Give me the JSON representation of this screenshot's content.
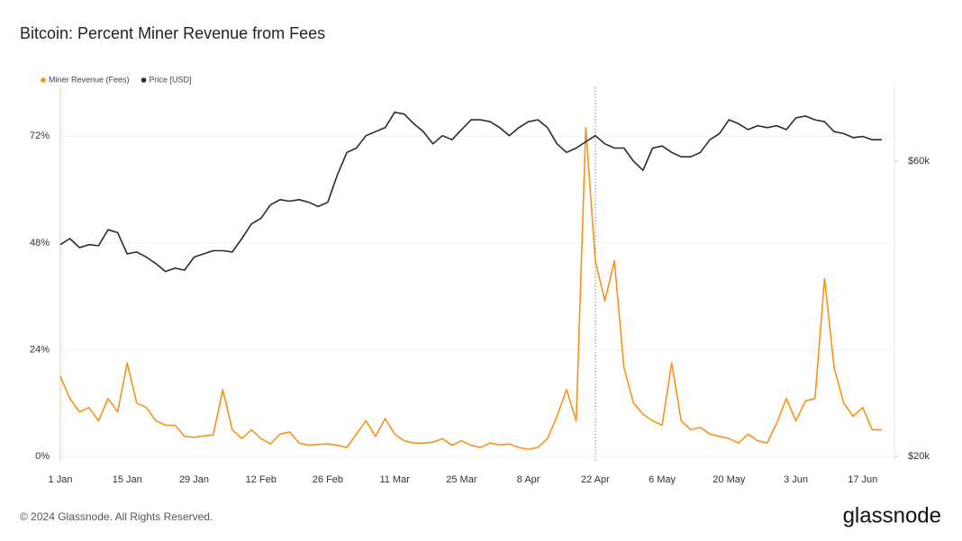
{
  "chart_data": {
    "type": "line",
    "title": "Bitcoin: Percent Miner Revenue from Fees",
    "x": [
      "1 Jan",
      null,
      null,
      null,
      null,
      null,
      null,
      "15 Jan",
      null,
      null,
      null,
      null,
      null,
      null,
      "29 Jan",
      null,
      null,
      null,
      null,
      null,
      null,
      "12 Feb",
      null,
      null,
      null,
      null,
      null,
      null,
      "26 Feb",
      null,
      null,
      null,
      null,
      null,
      null,
      "11 Mar",
      null,
      null,
      null,
      null,
      null,
      null,
      "25 Mar",
      null,
      null,
      null,
      null,
      null,
      null,
      "8 Apr",
      null,
      null,
      null,
      null,
      null,
      null,
      "22 Apr",
      null,
      null,
      null,
      null,
      null,
      null,
      "6 May",
      null,
      null,
      null,
      null,
      null,
      null,
      "20 May",
      null,
      null,
      null,
      null,
      null,
      null,
      "3 Jun",
      null,
      null,
      null,
      null,
      null,
      null,
      "17 Jun",
      null,
      null
    ],
    "series": [
      {
        "name": "Miner Revenue (Fees)",
        "color": "#f7931a",
        "axis": "y",
        "values": [
          18,
          13,
          10,
          11,
          8,
          13,
          10,
          21,
          12,
          11,
          8,
          7,
          7,
          4.5,
          4.3,
          4.6,
          4.8,
          15,
          6,
          4,
          6,
          4,
          2.8,
          5,
          5.5,
          3,
          2.5,
          2.7,
          2.8,
          2.5,
          2,
          5,
          8,
          4.5,
          8.5,
          5,
          3.5,
          3,
          3,
          3.2,
          4,
          2.5,
          3.5,
          2.5,
          2,
          3,
          2.6,
          2.8,
          2,
          1.6,
          2,
          4,
          9,
          15,
          8,
          74,
          44,
          35,
          44,
          20,
          12,
          9.5,
          8,
          7,
          21,
          8,
          6,
          6.5,
          5,
          4.5,
          4,
          3,
          5,
          3.5,
          3,
          7.5,
          13,
          8,
          12.5,
          13,
          40,
          20,
          12,
          9,
          11,
          6,
          6
        ]
      },
      {
        "name": "Price [USD]",
        "color": "#2b2b2b",
        "axis": "y2",
        "values": [
          44000,
          45000,
          43500,
          44000,
          43800,
          46500,
          46000,
          42500,
          42800,
          42000,
          41000,
          39800,
          40300,
          40000,
          42000,
          42500,
          43000,
          43000,
          42800,
          45000,
          47500,
          48500,
          51000,
          52000,
          51700,
          52000,
          51500,
          50700,
          51500,
          57000,
          62000,
          63000,
          66000,
          67000,
          68000,
          72000,
          71500,
          69000,
          67000,
          64000,
          66000,
          65000,
          67500,
          70000,
          70000,
          69500,
          68000,
          66000,
          68000,
          69500,
          70000,
          68000,
          64000,
          62000,
          63000,
          64500,
          66000,
          64000,
          63000,
          63000,
          60000,
          58000,
          63000,
          63500,
          62000,
          61000,
          61000,
          62000,
          65000,
          66500,
          70000,
          69000,
          67500,
          68500,
          68000,
          68500,
          67500,
          70500,
          71000,
          70000,
          69500,
          67000,
          66500,
          65500,
          65800,
          65000,
          65000
        ]
      }
    ],
    "ylim": [
      0,
      83
    ],
    "yticks": [
      {
        "value": 0,
        "label": "0%"
      },
      {
        "value": 24,
        "label": "24%"
      },
      {
        "value": 48,
        "label": "48%"
      },
      {
        "value": 72,
        "label": "72%"
      }
    ],
    "y2lim": [
      20000,
      79000
    ],
    "y2ticks": [
      {
        "value": 20000,
        "label": "$20k"
      },
      {
        "value": 60000,
        "label": "$60k"
      }
    ],
    "y2_log": true,
    "grid": true,
    "legend": "top-left"
  },
  "footer": "© 2024 Glassnode. All Rights Reserved.",
  "brand": "glassnode"
}
